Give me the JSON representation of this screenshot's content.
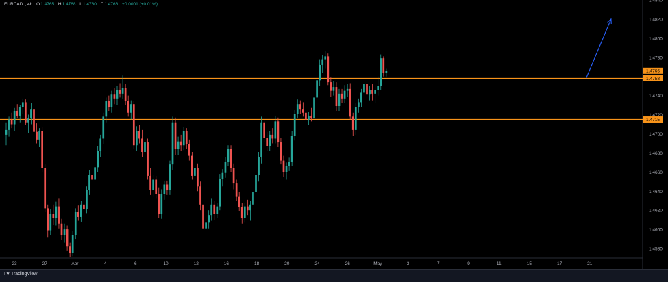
{
  "header": {
    "symbol": "EURCAD",
    "timeframe": "4h",
    "open_label": "O",
    "open_value": "1.4765",
    "high_label": "H",
    "high_value": "1.4768",
    "low_label": "L",
    "low_value": "1.4760",
    "close_label": "C",
    "close_value": "1.4766",
    "change": "+0.0001 (+0.01%)"
  },
  "footer": {
    "brand": "TradingView"
  },
  "colors": {
    "up": "#26a69a",
    "down": "#ef5350",
    "level": "#f7931a",
    "arrow": "#2962ff",
    "price_tag": "#f7931a"
  },
  "chart_data": {
    "type": "candlestick",
    "ylim": [
      1.457,
      1.484
    ],
    "y_ticks": [
      "1.4840",
      "1.4820",
      "1.4800",
      "1.4780",
      "1.4760",
      "1.4740",
      "1.4720",
      "1.4700",
      "1.4680",
      "1.4660",
      "1.4640",
      "1.4620",
      "1.4600",
      "1.4580"
    ],
    "x_ticks": [
      "23",
      "27",
      "Apr",
      "4",
      "6",
      "10",
      "12",
      "16",
      "18",
      "20",
      "24",
      "26",
      "May",
      "3",
      "7",
      "9",
      "11",
      "15",
      "17",
      "21"
    ],
    "price_tags": [
      "1.4766",
      "1.4758",
      "1.4715"
    ],
    "levels": [
      1.4758,
      1.4715
    ],
    "current_price": 1.4766,
    "arrow": {
      "from": [
        209,
        1.4758
      ],
      "to": [
        218,
        1.482
      ]
    },
    "candles": [
      [
        1.4699,
        1.4712,
        1.4688,
        1.4704
      ],
      [
        1.4704,
        1.4718,
        1.4697,
        1.4715
      ],
      [
        1.4715,
        1.4722,
        1.4706,
        1.471
      ],
      [
        1.471,
        1.4727,
        1.4703,
        1.4724
      ],
      [
        1.4724,
        1.4731,
        1.4716,
        1.4719
      ],
      [
        1.4719,
        1.473,
        1.4712,
        1.4728
      ],
      [
        1.4728,
        1.4737,
        1.4721,
        1.4733
      ],
      [
        1.4733,
        1.4736,
        1.4709,
        1.4712
      ],
      [
        1.4712,
        1.472,
        1.4701,
        1.4716
      ],
      [
        1.4716,
        1.4732,
        1.471,
        1.4726
      ],
      [
        1.4726,
        1.4729,
        1.4698,
        1.4702
      ],
      [
        1.4702,
        1.4711,
        1.469,
        1.4694
      ],
      [
        1.4694,
        1.4706,
        1.4686,
        1.4703
      ],
      [
        1.4703,
        1.4707,
        1.466,
        1.4664
      ],
      [
        1.4664,
        1.4668,
        1.4618,
        1.4622
      ],
      [
        1.4622,
        1.4626,
        1.4592,
        1.4599
      ],
      [
        1.4599,
        1.4621,
        1.4594,
        1.4616
      ],
      [
        1.4616,
        1.4626,
        1.4605,
        1.4612
      ],
      [
        1.4612,
        1.4629,
        1.4604,
        1.4624
      ],
      [
        1.4624,
        1.4632,
        1.4601,
        1.4606
      ],
      [
        1.4606,
        1.4611,
        1.4589,
        1.4594
      ],
      [
        1.4594,
        1.4606,
        1.4586,
        1.46
      ],
      [
        1.46,
        1.4604,
        1.4578,
        1.4582
      ],
      [
        1.4582,
        1.4586,
        1.4571,
        1.4575
      ],
      [
        1.4575,
        1.4598,
        1.4572,
        1.4594
      ],
      [
        1.4594,
        1.4622,
        1.459,
        1.4618
      ],
      [
        1.4618,
        1.4625,
        1.4609,
        1.4613
      ],
      [
        1.4613,
        1.463,
        1.4608,
        1.4626
      ],
      [
        1.4626,
        1.4634,
        1.4617,
        1.4621
      ],
      [
        1.4621,
        1.4645,
        1.4617,
        1.4641
      ],
      [
        1.4641,
        1.4662,
        1.4636,
        1.4657
      ],
      [
        1.4657,
        1.4664,
        1.4648,
        1.4652
      ],
      [
        1.4652,
        1.4669,
        1.4646,
        1.4665
      ],
      [
        1.4665,
        1.4687,
        1.466,
        1.4682
      ],
      [
        1.4682,
        1.4699,
        1.4676,
        1.4695
      ],
      [
        1.4695,
        1.4722,
        1.4689,
        1.4718
      ],
      [
        1.4718,
        1.4738,
        1.4712,
        1.4734
      ],
      [
        1.4734,
        1.474,
        1.4724,
        1.4728
      ],
      [
        1.4728,
        1.4745,
        1.4722,
        1.4741
      ],
      [
        1.4741,
        1.4748,
        1.4731,
        1.4737
      ],
      [
        1.4737,
        1.475,
        1.473,
        1.4746
      ],
      [
        1.4746,
        1.4753,
        1.4738,
        1.4742
      ],
      [
        1.4742,
        1.4761,
        1.4737,
        1.4748
      ],
      [
        1.4748,
        1.4752,
        1.473,
        1.4734
      ],
      [
        1.4734,
        1.474,
        1.4718,
        1.4722
      ],
      [
        1.4722,
        1.4735,
        1.4715,
        1.4731
      ],
      [
        1.4731,
        1.4734,
        1.4684,
        1.4688
      ],
      [
        1.4688,
        1.4708,
        1.4682,
        1.4703
      ],
      [
        1.4703,
        1.4709,
        1.469,
        1.4695
      ],
      [
        1.4695,
        1.4704,
        1.4676,
        1.4681
      ],
      [
        1.4681,
        1.4697,
        1.4674,
        1.4691
      ],
      [
        1.4691,
        1.4695,
        1.4652,
        1.4656
      ],
      [
        1.4656,
        1.4664,
        1.4636,
        1.4641
      ],
      [
        1.4641,
        1.4657,
        1.4634,
        1.4652
      ],
      [
        1.4652,
        1.4656,
        1.4632,
        1.4637
      ],
      [
        1.4637,
        1.4644,
        1.4612,
        1.4616
      ],
      [
        1.4616,
        1.4642,
        1.4611,
        1.4637
      ],
      [
        1.4637,
        1.4651,
        1.4631,
        1.4647
      ],
      [
        1.4647,
        1.4651,
        1.4636,
        1.4641
      ],
      [
        1.4641,
        1.4672,
        1.4636,
        1.4668
      ],
      [
        1.4668,
        1.4718,
        1.4662,
        1.4712
      ],
      [
        1.4712,
        1.4717,
        1.4678,
        1.4684
      ],
      [
        1.4684,
        1.4697,
        1.4678,
        1.4692
      ],
      [
        1.4692,
        1.4699,
        1.4682,
        1.4688
      ],
      [
        1.4688,
        1.4707,
        1.4683,
        1.4703
      ],
      [
        1.4703,
        1.4706,
        1.4684,
        1.4689
      ],
      [
        1.4689,
        1.4694,
        1.4672,
        1.4677
      ],
      [
        1.4677,
        1.4681,
        1.4652,
        1.4656
      ],
      [
        1.4656,
        1.4668,
        1.465,
        1.4664
      ],
      [
        1.4664,
        1.4669,
        1.464,
        1.4645
      ],
      [
        1.4645,
        1.465,
        1.462,
        1.4626
      ],
      [
        1.4626,
        1.4631,
        1.4596,
        1.4601
      ],
      [
        1.4601,
        1.4612,
        1.4583,
        1.4607
      ],
      [
        1.4607,
        1.462,
        1.4601,
        1.4615
      ],
      [
        1.4615,
        1.4632,
        1.4609,
        1.4626
      ],
      [
        1.4626,
        1.463,
        1.461,
        1.4616
      ],
      [
        1.4616,
        1.4628,
        1.4612,
        1.4624
      ],
      [
        1.4624,
        1.4658,
        1.462,
        1.4653
      ],
      [
        1.4653,
        1.4663,
        1.4645,
        1.4659
      ],
      [
        1.4659,
        1.4676,
        1.4654,
        1.4671
      ],
      [
        1.4671,
        1.4688,
        1.4666,
        1.4684
      ],
      [
        1.4684,
        1.4688,
        1.466,
        1.4664
      ],
      [
        1.4664,
        1.4669,
        1.4642,
        1.4648
      ],
      [
        1.4648,
        1.4652,
        1.463,
        1.4634
      ],
      [
        1.4634,
        1.4639,
        1.4619,
        1.4623
      ],
      [
        1.4623,
        1.4628,
        1.4606,
        1.4612
      ],
      [
        1.4612,
        1.4628,
        1.4607,
        1.4624
      ],
      [
        1.4624,
        1.4631,
        1.4615,
        1.462
      ],
      [
        1.462,
        1.463,
        1.4609,
        1.4626
      ],
      [
        1.4626,
        1.4643,
        1.4621,
        1.4639
      ],
      [
        1.4639,
        1.4662,
        1.4633,
        1.4657
      ],
      [
        1.4657,
        1.4681,
        1.465,
        1.4676
      ],
      [
        1.4676,
        1.4718,
        1.4669,
        1.4712
      ],
      [
        1.4712,
        1.4715,
        1.4691,
        1.4696
      ],
      [
        1.4696,
        1.4702,
        1.4682,
        1.4687
      ],
      [
        1.4687,
        1.4703,
        1.4682,
        1.4699
      ],
      [
        1.4699,
        1.4706,
        1.469,
        1.4695
      ],
      [
        1.4695,
        1.4719,
        1.469,
        1.4713
      ],
      [
        1.4713,
        1.4717,
        1.4686,
        1.4691
      ],
      [
        1.4691,
        1.4696,
        1.4668,
        1.4672
      ],
      [
        1.4672,
        1.4677,
        1.4655,
        1.466
      ],
      [
        1.466,
        1.467,
        1.4652,
        1.4666
      ],
      [
        1.4666,
        1.4675,
        1.4661,
        1.4671
      ],
      [
        1.4671,
        1.4703,
        1.4666,
        1.4698
      ],
      [
        1.4698,
        1.4725,
        1.4693,
        1.4721
      ],
      [
        1.4721,
        1.4736,
        1.4716,
        1.4731
      ],
      [
        1.4731,
        1.4735,
        1.4721,
        1.4726
      ],
      [
        1.4726,
        1.4733,
        1.4718,
        1.4722
      ],
      [
        1.4722,
        1.4727,
        1.471,
        1.4714
      ],
      [
        1.4714,
        1.4723,
        1.4709,
        1.4719
      ],
      [
        1.4719,
        1.4727,
        1.4713,
        1.4716
      ],
      [
        1.4716,
        1.4742,
        1.4712,
        1.4738
      ],
      [
        1.4738,
        1.4761,
        1.4733,
        1.4756
      ],
      [
        1.4756,
        1.4778,
        1.475,
        1.4772
      ],
      [
        1.4772,
        1.4782,
        1.4764,
        1.4778
      ],
      [
        1.4778,
        1.4787,
        1.4768,
        1.4781
      ],
      [
        1.4781,
        1.4784,
        1.4751,
        1.4754
      ],
      [
        1.4754,
        1.4759,
        1.4739,
        1.4745
      ],
      [
        1.4745,
        1.4755,
        1.474,
        1.4749
      ],
      [
        1.4749,
        1.4754,
        1.4724,
        1.4729
      ],
      [
        1.4729,
        1.4747,
        1.4724,
        1.4742
      ],
      [
        1.4742,
        1.4747,
        1.4732,
        1.4737
      ],
      [
        1.4737,
        1.4751,
        1.4732,
        1.4745
      ],
      [
        1.4745,
        1.4752,
        1.4739,
        1.4747
      ],
      [
        1.4747,
        1.4753,
        1.4714,
        1.4718
      ],
      [
        1.4718,
        1.4722,
        1.4698,
        1.4704
      ],
      [
        1.4704,
        1.4732,
        1.4699,
        1.4728
      ],
      [
        1.4728,
        1.4737,
        1.4722,
        1.4733
      ],
      [
        1.4733,
        1.4747,
        1.4728,
        1.4743
      ],
      [
        1.4743,
        1.4759,
        1.4738,
        1.4752
      ],
      [
        1.4752,
        1.4755,
        1.4737,
        1.4741
      ],
      [
        1.4741,
        1.475,
        1.4735,
        1.4746
      ],
      [
        1.4746,
        1.4752,
        1.4735,
        1.4742
      ],
      [
        1.4742,
        1.4751,
        1.4732,
        1.4746
      ],
      [
        1.4746,
        1.476,
        1.474,
        1.475
      ],
      [
        1.475,
        1.4783,
        1.4746,
        1.4779
      ],
      [
        1.4779,
        1.4781,
        1.476,
        1.4764
      ],
      [
        1.4764,
        1.4768,
        1.476,
        1.4766
      ]
    ]
  }
}
